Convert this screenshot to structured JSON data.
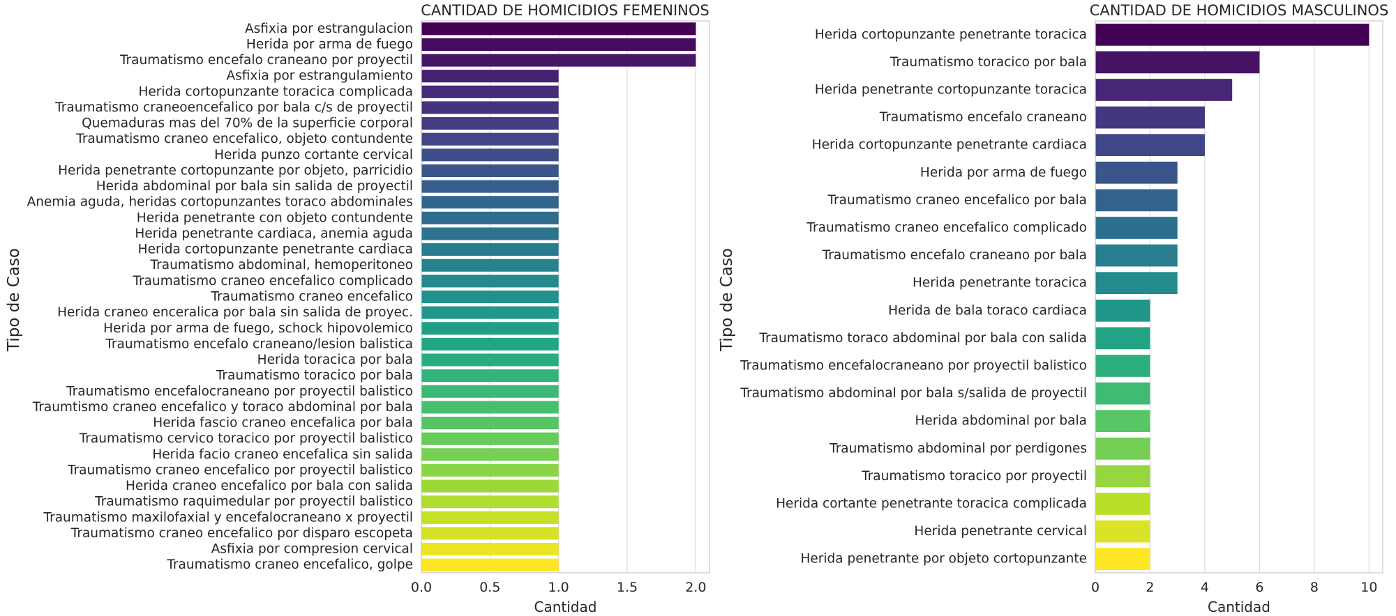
{
  "chart_data": [
    {
      "type": "bar",
      "orientation": "horizontal",
      "title": "CANTIDAD DE HOMICIDIOS FEMENINOS",
      "xlabel": "Cantidad",
      "ylabel": "Tipo de Caso",
      "xlim": [
        0,
        2.1
      ],
      "xticks": [
        0,
        0.5,
        1,
        1.5,
        2
      ],
      "xtick_labels": [
        "0.0",
        "0.5",
        "1.0",
        "1.5",
        "2.0"
      ],
      "grid": "vertical",
      "palette": "viridis",
      "categories": [
        "Asfixia por estrangulacion",
        "Herida por arma de fuego",
        "Traumatismo encefalo craneano por proyectil",
        "Asfixia por estrangulamiento",
        "Herida cortopunzante toracica complicada",
        "Traumatismo craneoencefalico por bala c/s de proyectil",
        "Quemaduras mas del 70% de la superficie corporal",
        "Traumatismo craneo encefalico, objeto contundente",
        "Herida punzo cortante cervical",
        "Herida penetrante cortopunzante por objeto, parricidio",
        "Herida abdominal por bala sin salida de proyectil",
        "Anemia aguda, heridas cortopunzantes toraco abdominales",
        "Herida penetrante con objeto contundente",
        "Herida penetrante cardiaca, anemia aguda",
        "Herida cortopunzante penetrante cardiaca",
        "Traumatismo abdominal, hemoperitoneo",
        "Traumatismo craneo encefalico complicado",
        "Traumatismo craneo encefalico",
        "Herida craneo enceralica por bala sin salida de proyec.",
        "Herida por arma de fuego, schock hipovolemico",
        "Traumatismo encefalo craneano/lesion balistica",
        "Herida toracica por bala",
        "Traumatismo toracico por bala",
        "Traumatismo encefalocraneano por proyectil balistico",
        "Traumtismo craneo encefalico y toraco abdominal por bala",
        "Herida fascio craneo encefalica por bala",
        "Traumatismo cervico toracico por proyectil balistico",
        "Herida facio craneo encefalica sin salida",
        "Traumatismo craneo encefalico por proyectil balistico",
        "Herida craneo encefalico por bala con salida",
        "Traumatismo raquimedular por proyectil balistico",
        "Traumatismo maxilofaxial y encefalocraneano x proyectil",
        "Traumatismo craneo encefalico por disparo escopeta",
        "Asfixia por compresion cervical",
        "Traumatismo craneo encefalico, golpe"
      ],
      "values": [
        2,
        2,
        2,
        1,
        1,
        1,
        1,
        1,
        1,
        1,
        1,
        1,
        1,
        1,
        1,
        1,
        1,
        1,
        1,
        1,
        1,
        1,
        1,
        1,
        1,
        1,
        1,
        1,
        1,
        1,
        1,
        1,
        1,
        1,
        1
      ]
    },
    {
      "type": "bar",
      "orientation": "horizontal",
      "title": "CANTIDAD DE HOMICIDIOS MASCULINOS",
      "xlabel": "Cantidad",
      "ylabel": "Tipo de Caso",
      "xlim": [
        0,
        10.5
      ],
      "xticks": [
        0,
        2,
        4,
        6,
        8,
        10
      ],
      "xtick_labels": [
        "0",
        "2",
        "4",
        "6",
        "8",
        "10"
      ],
      "grid": "vertical",
      "palette": "viridis",
      "categories": [
        "Herida cortopunzante penetrante toracica",
        "Traumatismo toracico por bala",
        "Herida penetrante cortopunzante toracica",
        "Traumatismo encefalo craneano",
        "Herida cortopunzante penetrante cardiaca",
        "Herida por arma de fuego",
        "Traumatismo craneo encefalico por bala",
        "Traumatismo craneo encefalico complicado",
        "Traumatismo encefalo craneano por bala",
        "Herida penetrante toracica",
        "Herida de bala toraco cardiaca",
        "Traumatismo toraco abdominal por bala con salida",
        "Traumatismo encefalocraneano por proyectil balistico",
        "Traumatismo abdominal por bala s/salida de proyectil",
        "Herida abdominal por bala",
        "Traumatismo abdominal por perdigones",
        "Traumatismo toracico por proyectil",
        "Herida cortante penetrante toracica complicada",
        "Herida penetrante cervical",
        "Herida penetrante por objeto cortopunzante"
      ],
      "values": [
        10,
        6,
        5,
        4,
        4,
        3,
        3,
        3,
        3,
        3,
        2,
        2,
        2,
        2,
        2,
        2,
        2,
        2,
        2,
        2
      ]
    }
  ]
}
